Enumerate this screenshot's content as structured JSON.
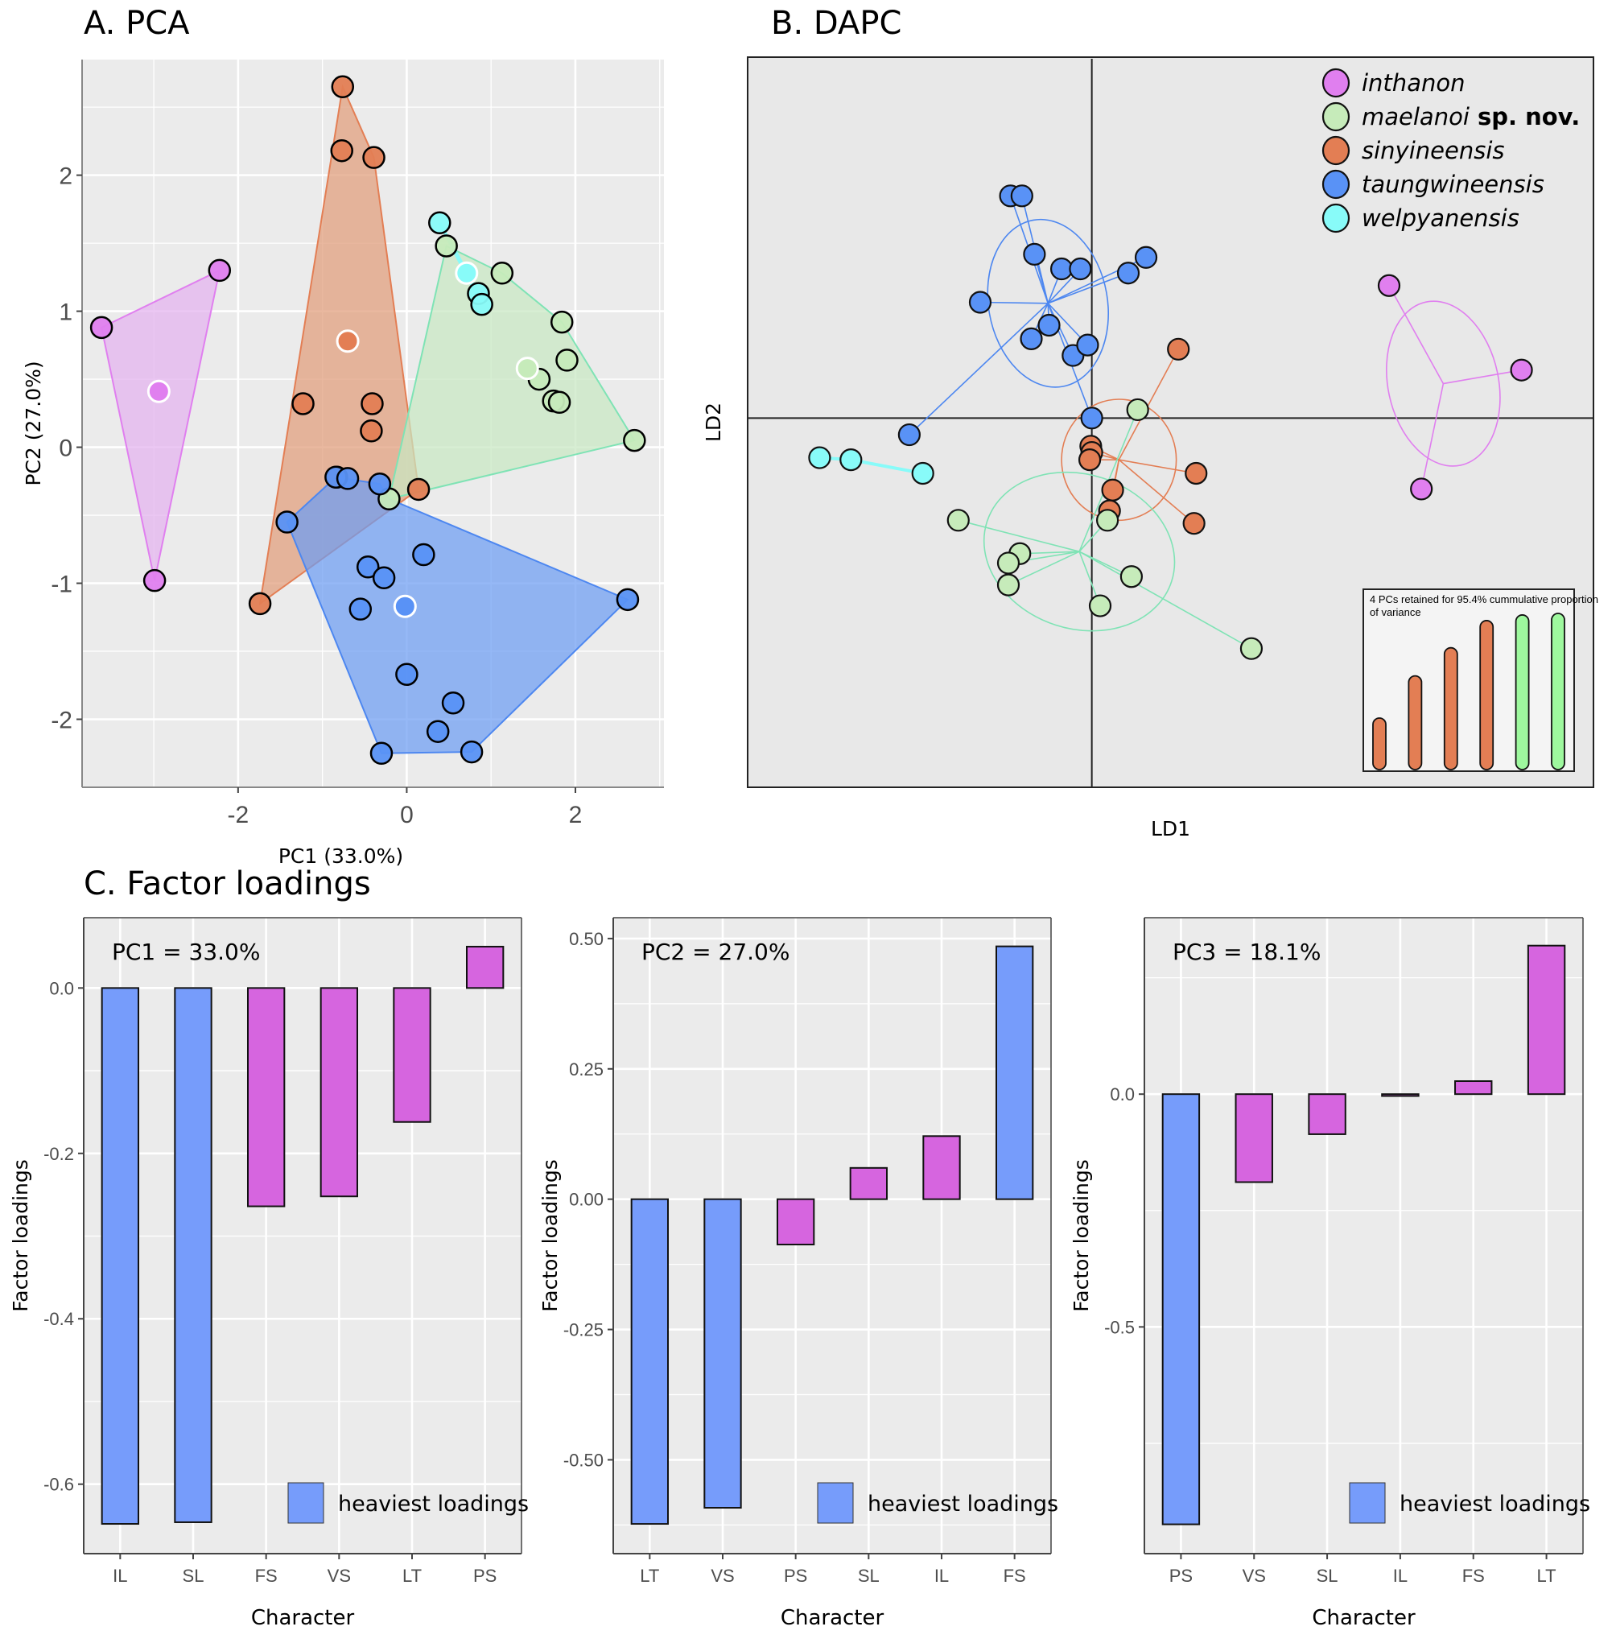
{
  "figure": {
    "panel_a_title": "A. PCA",
    "panel_b_title": "B. DAPC",
    "panel_c_title": "C. Factor loadings"
  },
  "species": [
    {
      "key": "inthanon",
      "label": "inthanon",
      "suffix": "",
      "color": "#E07FEF",
      "hull_fill": "#E3B1EE",
      "line": "#E07FEF"
    },
    {
      "key": "maelanoi",
      "label": "maelanoi",
      "suffix": "sp. nov.",
      "color": "#C6EBBA",
      "hull_fill": "#C7E8C2",
      "line": "#7FE3B5"
    },
    {
      "key": "sinyineensis",
      "label": "sinyineensis",
      "suffix": "",
      "color": "#E37E54",
      "hull_fill": "#E09C7A",
      "line": "#E37E54"
    },
    {
      "key": "taungwineensis",
      "label": "taungwineensis",
      "suffix": "",
      "color": "#5992F6",
      "hull_fill": "#6C9DF2",
      "line": "#4D87F0"
    },
    {
      "key": "welpyanensis",
      "label": "welpyanensis",
      "suffix": "",
      "color": "#88FBF9",
      "hull_fill": "#88FBF9",
      "line": "#88FBF9"
    }
  ],
  "chart_data": [
    {
      "id": "pca",
      "type": "scatter",
      "title": "A. PCA",
      "xlabel": "PC1 (33.0%)",
      "ylabel": "PC2 (27.0%)",
      "xlim": [
        -3.85,
        3.05
      ],
      "ylim": [
        -2.5,
        2.85
      ],
      "xticks": [
        -2,
        0,
        2
      ],
      "yticks": [
        -2,
        -1,
        0,
        1,
        2
      ],
      "grid": true,
      "series": [
        {
          "name": "inthanon",
          "points": [
            [
              -3.62,
              0.88
            ],
            [
              -2.22,
              1.3
            ],
            [
              -2.99,
              -0.98
            ]
          ],
          "hull": [
            [
              -3.62,
              0.88
            ],
            [
              -2.22,
              1.3
            ],
            [
              -2.99,
              -0.98
            ]
          ],
          "centroid": [
            -2.94,
            0.41
          ]
        },
        {
          "name": "sinyineensis",
          "points": [
            [
              -0.76,
              2.65
            ],
            [
              -0.77,
              2.18
            ],
            [
              -0.39,
              2.13
            ],
            [
              -1.23,
              0.32
            ],
            [
              -0.41,
              0.32
            ],
            [
              -0.42,
              0.12
            ],
            [
              -1.74,
              -1.15
            ],
            [
              0.14,
              -0.31
            ],
            [
              -0.83,
              -0.22
            ]
          ],
          "hull": [
            [
              -0.76,
              2.65
            ],
            [
              -0.39,
              2.13
            ],
            [
              0.14,
              -0.31
            ],
            [
              -1.74,
              -1.15
            ]
          ],
          "centroid": [
            -0.7,
            0.78
          ]
        },
        {
          "name": "maelanoi",
          "points": [
            [
              0.47,
              1.48
            ],
            [
              1.13,
              1.28
            ],
            [
              1.84,
              0.92
            ],
            [
              1.9,
              0.64
            ],
            [
              1.57,
              0.5
            ],
            [
              1.74,
              0.34
            ],
            [
              1.81,
              0.33
            ],
            [
              2.7,
              0.05
            ],
            [
              -0.21,
              -0.38
            ]
          ],
          "hull": [
            [
              0.47,
              1.48
            ],
            [
              1.13,
              1.28
            ],
            [
              1.84,
              0.92
            ],
            [
              2.7,
              0.05
            ],
            [
              -0.21,
              -0.38
            ]
          ],
          "centroid": [
            1.43,
            0.58
          ]
        },
        {
          "name": "taungwineensis",
          "points": [
            [
              -0.84,
              -0.22
            ],
            [
              -0.7,
              -0.23
            ],
            [
              -0.32,
              -0.27
            ],
            [
              -1.42,
              -0.55
            ],
            [
              -0.46,
              -0.88
            ],
            [
              -0.27,
              -0.96
            ],
            [
              0.2,
              -0.79
            ],
            [
              -0.55,
              -1.19
            ],
            [
              0.0,
              -1.67
            ],
            [
              0.55,
              -1.88
            ],
            [
              0.37,
              -2.09
            ],
            [
              -0.3,
              -2.25
            ],
            [
              0.77,
              -2.24
            ],
            [
              2.62,
              -1.12
            ]
          ],
          "hull": [
            [
              -0.84,
              -0.22
            ],
            [
              -0.32,
              -0.27
            ],
            [
              -0.21,
              -0.38
            ],
            [
              2.62,
              -1.12
            ],
            [
              0.77,
              -2.24
            ],
            [
              -0.3,
              -2.25
            ],
            [
              -1.42,
              -0.55
            ]
          ],
          "centroid": [
            -0.02,
            -1.17
          ]
        },
        {
          "name": "welpyanensis",
          "points": [
            [
              0.39,
              1.65
            ],
            [
              0.85,
              1.13
            ],
            [
              0.89,
              1.05
            ]
          ],
          "hull": [
            [
              0.39,
              1.65
            ],
            [
              0.89,
              1.05
            ],
            [
              0.85,
              1.13
            ]
          ],
          "centroid": [
            0.71,
            1.28
          ]
        }
      ]
    },
    {
      "id": "dapc",
      "type": "scatter",
      "title": "B. DAPC",
      "xlabel": "LD1",
      "ylabel": "LD2",
      "xlim": [
        -3.3,
        4.81
      ],
      "ylim": [
        -3.54,
        3.46
      ],
      "grid": false,
      "legend_position": "top-right",
      "series": [
        {
          "name": "taungwineensis",
          "centroid": [
            -0.42,
            1.1
          ],
          "ellipse": {
            "rx": 0.57,
            "ry": 0.81,
            "angle": -10
          },
          "points": [
            [
              -0.78,
              2.13
            ],
            [
              -0.67,
              2.13
            ],
            [
              -0.55,
              1.57
            ],
            [
              -0.29,
              1.43
            ],
            [
              -0.11,
              1.43
            ],
            [
              0.35,
              1.39
            ],
            [
              0.52,
              1.54
            ],
            [
              -1.07,
              1.11
            ],
            [
              -0.41,
              0.89
            ],
            [
              -0.58,
              0.76
            ],
            [
              -0.18,
              0.6
            ],
            [
              -0.04,
              0.7
            ],
            [
              0.0,
              0.0
            ],
            [
              -1.75,
              -0.16
            ]
          ]
        },
        {
          "name": "sinyineensis",
          "centroid": [
            0.26,
            -0.4
          ],
          "ellipse": {
            "rx": 0.55,
            "ry": 0.58,
            "angle": 0
          },
          "points": [
            [
              0.83,
              0.66
            ],
            [
              -0.01,
              -0.27
            ],
            [
              0.0,
              -0.33
            ],
            [
              -0.02,
              -0.4
            ],
            [
              0.2,
              -0.69
            ],
            [
              0.17,
              -0.89
            ],
            [
              1.0,
              -0.53
            ],
            [
              0.98,
              -1.01
            ]
          ]
        },
        {
          "name": "maelanoi",
          "centroid": [
            -0.12,
            -1.28
          ],
          "ellipse": {
            "rx": 0.93,
            "ry": 0.74,
            "angle": 18
          },
          "points": [
            [
              0.44,
              0.08
            ],
            [
              0.15,
              -0.98
            ],
            [
              -1.28,
              -0.98
            ],
            [
              -0.69,
              -1.3
            ],
            [
              -0.8,
              -1.39
            ],
            [
              -0.8,
              -1.6
            ],
            [
              0.38,
              -1.52
            ],
            [
              0.08,
              -1.8
            ],
            [
              1.53,
              -2.21
            ]
          ]
        },
        {
          "name": "welpyanensis",
          "centroid": [
            -2.3,
            -0.4
          ],
          "ellipse": null,
          "points": [
            [
              -2.61,
              -0.38
            ],
            [
              -2.31,
              -0.4
            ],
            [
              -1.62,
              -0.53
            ]
          ]
        },
        {
          "name": "inthanon",
          "centroid": [
            3.37,
            0.33
          ],
          "ellipse": {
            "rx": 0.53,
            "ry": 0.8,
            "angle": -12
          },
          "points": [
            [
              2.85,
              1.27
            ],
            [
              4.12,
              0.46
            ],
            [
              3.16,
              -0.68
            ]
          ]
        }
      ],
      "inset": {
        "type": "bar",
        "text": "4 PCs retained for 95.4% cummulative proportion of variance",
        "values": [
          0.33,
          0.6,
          0.78,
          0.954,
          0.99,
          1.0
        ],
        "retained": 4,
        "retained_color": "#E37E54",
        "other_color": "#9EF89E"
      }
    },
    {
      "id": "pc1",
      "type": "bar",
      "title": "PC1 = 33.0%",
      "xlabel": "Character",
      "ylabel": "Factor loadings",
      "categories": [
        "IL",
        "SL",
        "FS",
        "VS",
        "LT",
        "PS"
      ],
      "values": [
        -0.648,
        -0.646,
        -0.264,
        -0.252,
        -0.162,
        0.05
      ],
      "heaviest": [
        true,
        true,
        false,
        false,
        false,
        false
      ],
      "ylim": [
        -0.684,
        0.085
      ],
      "yticks": [
        0.0,
        -0.2,
        -0.4,
        -0.6
      ],
      "ytick_labels": [
        "0.0",
        "-0.2",
        "-0.4",
        "-0.6"
      ],
      "legend": "heaviest loadings",
      "legend_position": "bottom-right"
    },
    {
      "id": "pc2",
      "type": "bar",
      "title": "PC2 = 27.0%",
      "xlabel": "Character",
      "ylabel": "Factor loadings",
      "categories": [
        "LT",
        "VS",
        "PS",
        "SL",
        "IL",
        "FS"
      ],
      "values": [
        -0.623,
        -0.592,
        -0.087,
        0.06,
        0.121,
        0.485
      ],
      "heaviest": [
        true,
        true,
        false,
        false,
        false,
        true
      ],
      "ylim": [
        -0.68,
        0.54
      ],
      "yticks": [
        0.5,
        0.25,
        0.0,
        -0.25,
        -0.5
      ],
      "ytick_labels": [
        "0.50",
        "0.25",
        "0.00",
        "-0.25",
        "-0.50"
      ],
      "legend": "heaviest loadings",
      "legend_position": "bottom-right"
    },
    {
      "id": "pc3",
      "type": "bar",
      "title": "PC3 = 18.1%",
      "xlabel": "Character",
      "ylabel": "Factor loadings",
      "categories": [
        "PS",
        "VS",
        "SL",
        "IL",
        "FS",
        "LT"
      ],
      "values": [
        -0.924,
        -0.189,
        -0.086,
        -0.004,
        0.028,
        0.319
      ],
      "heaviest": [
        true,
        false,
        false,
        false,
        false,
        false
      ],
      "ylim": [
        -0.987,
        0.379
      ],
      "yticks": [
        0.0,
        -0.5
      ],
      "ytick_labels": [
        "0.0",
        "-0.5"
      ],
      "legend": "heaviest loadings",
      "legend_position": "bottom-right"
    }
  ],
  "colors": {
    "panel_bg": "#EBEBEB",
    "grid": "#FFFFFF",
    "heaviest_bar": "#769CFB",
    "other_bar": "#D665DF",
    "dapc_bg": "#E8E8E8"
  }
}
